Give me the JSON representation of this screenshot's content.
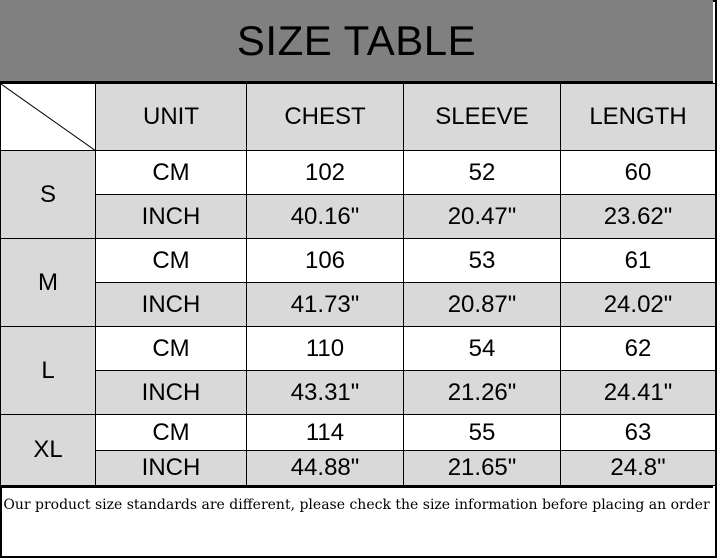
{
  "title": "SIZE TABLE",
  "headers": [
    "UNIT",
    "CHEST",
    "SLEEVE",
    "LENGTH"
  ],
  "sizes": [
    {
      "size": "S",
      "rows": [
        {
          "unit": "CM",
          "chest": "102",
          "sleeve": "52",
          "length": "60"
        },
        {
          "unit": "INCH",
          "chest": "40.16\"",
          "sleeve": "20.47\"",
          "length": "23.62\""
        }
      ]
    },
    {
      "size": "M",
      "rows": [
        {
          "unit": "CM",
          "chest": "106",
          "sleeve": "53",
          "length": "61"
        },
        {
          "unit": "INCH",
          "chest": "41.73\"",
          "sleeve": "20.87\"",
          "length": "24.02\""
        }
      ]
    },
    {
      "size": "L",
      "rows": [
        {
          "unit": "CM",
          "chest": "110",
          "sleeve": "54",
          "length": "62"
        },
        {
          "unit": "INCH",
          "chest": "43.31\"",
          "sleeve": "21.26\"",
          "length": "24.41\""
        }
      ]
    },
    {
      "size": "XL",
      "rows": [
        {
          "unit": "CM",
          "chest": "114",
          "sleeve": "55",
          "length": "63"
        },
        {
          "unit": "INCH",
          "chest": "44.88\"",
          "sleeve": "21.65\"",
          "length": "24.8\""
        }
      ]
    }
  ],
  "note": "Our product size standards are different, please check the size information before placing an order",
  "colors": {
    "title_bg": "#808080",
    "cell_gray": "#d9d9d9",
    "cell_white": "#ffffff"
  }
}
